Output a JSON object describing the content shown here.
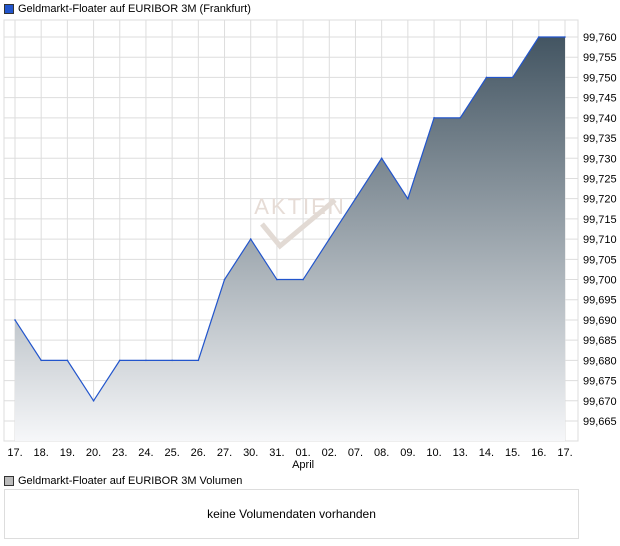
{
  "legend_main": "Geldmarkt-Floater auf EURIBOR 3M (Frankfurt)",
  "legend_volume": "Geldmarkt-Floater auf EURIBOR 3M Volumen",
  "volume_message": "keine Volumendaten vorhanden",
  "watermark": "AKTIEN CHECK",
  "colors": {
    "line": "#2255cc",
    "fill_top": "#435562",
    "fill_bottom": "#f6f7f9",
    "grid": "#dddddd",
    "volume_swatch": "#bbbbbb"
  },
  "chart_data": {
    "type": "area",
    "title": "Geldmarkt-Floater auf EURIBOR 3M (Frankfurt)",
    "categories": [
      "17.",
      "18.",
      "19.",
      "20.",
      "23.",
      "24.",
      "25.",
      "26.",
      "27.",
      "30.",
      "31.",
      "01.",
      "02.",
      "07.",
      "08.",
      "09.",
      "10.",
      "13.",
      "14.",
      "15.",
      "16.",
      "17."
    ],
    "month_label": {
      "text": "April",
      "at_index": 11
    },
    "values": [
      99.69,
      99.68,
      99.68,
      99.67,
      99.68,
      99.68,
      99.68,
      99.68,
      99.7,
      99.71,
      99.7,
      99.7,
      99.71,
      99.72,
      99.73,
      99.72,
      99.74,
      99.74,
      99.75,
      99.75,
      99.76,
      99.76
    ],
    "y_ticks": [
      99.665,
      99.67,
      99.675,
      99.68,
      99.685,
      99.69,
      99.695,
      99.7,
      99.705,
      99.71,
      99.715,
      99.72,
      99.725,
      99.73,
      99.735,
      99.74,
      99.745,
      99.75,
      99.755,
      99.76
    ],
    "ylim": [
      99.665,
      99.76
    ],
    "y_axis_position": "right",
    "grid": true
  }
}
